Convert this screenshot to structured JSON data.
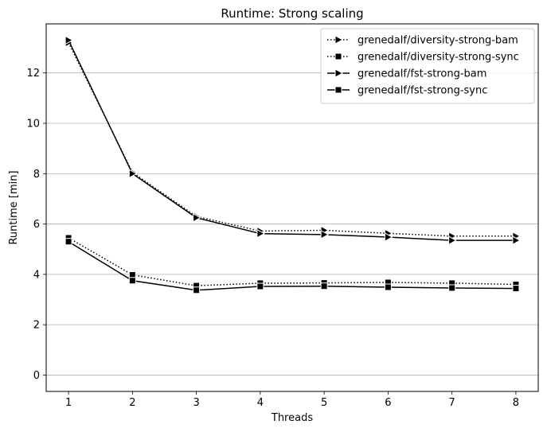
{
  "chart_data": {
    "type": "line",
    "title": "Runtime:  Strong scaling",
    "xlabel": "Threads",
    "ylabel": "Runtime  [min]",
    "x": [
      1,
      2,
      3,
      4,
      5,
      6,
      7,
      8
    ],
    "xlim": [
      0.65,
      8.35
    ],
    "ylim": [
      -0.65,
      13.95
    ],
    "xticks": [
      1,
      2,
      3,
      4,
      5,
      6,
      7,
      8
    ],
    "yticks": [
      0,
      2,
      4,
      6,
      8,
      10,
      12
    ],
    "grid": "y-major",
    "legend_position": "top-right",
    "series": [
      {
        "name": "grenedalf/diversity-strong-bam",
        "marker": "triangle-right",
        "linestyle": "dotted",
        "color": "#000000",
        "values": [
          13.2,
          8.05,
          6.3,
          5.72,
          5.75,
          5.63,
          5.52,
          5.52
        ]
      },
      {
        "name": "grenedalf/diversity-strong-sync",
        "marker": "square",
        "linestyle": "dotted",
        "color": "#000000",
        "values": [
          5.45,
          3.98,
          3.55,
          3.65,
          3.66,
          3.68,
          3.65,
          3.6
        ]
      },
      {
        "name": "grenedalf/fst-strong-bam",
        "marker": "triangle-right",
        "linestyle": "solid",
        "color": "#000000",
        "values": [
          13.3,
          8.0,
          6.25,
          5.62,
          5.58,
          5.48,
          5.35,
          5.35
        ]
      },
      {
        "name": "grenedalf/fst-strong-sync",
        "marker": "square",
        "linestyle": "solid",
        "color": "#000000",
        "values": [
          5.3,
          3.75,
          3.37,
          3.52,
          3.53,
          3.49,
          3.46,
          3.44
        ]
      }
    ]
  }
}
